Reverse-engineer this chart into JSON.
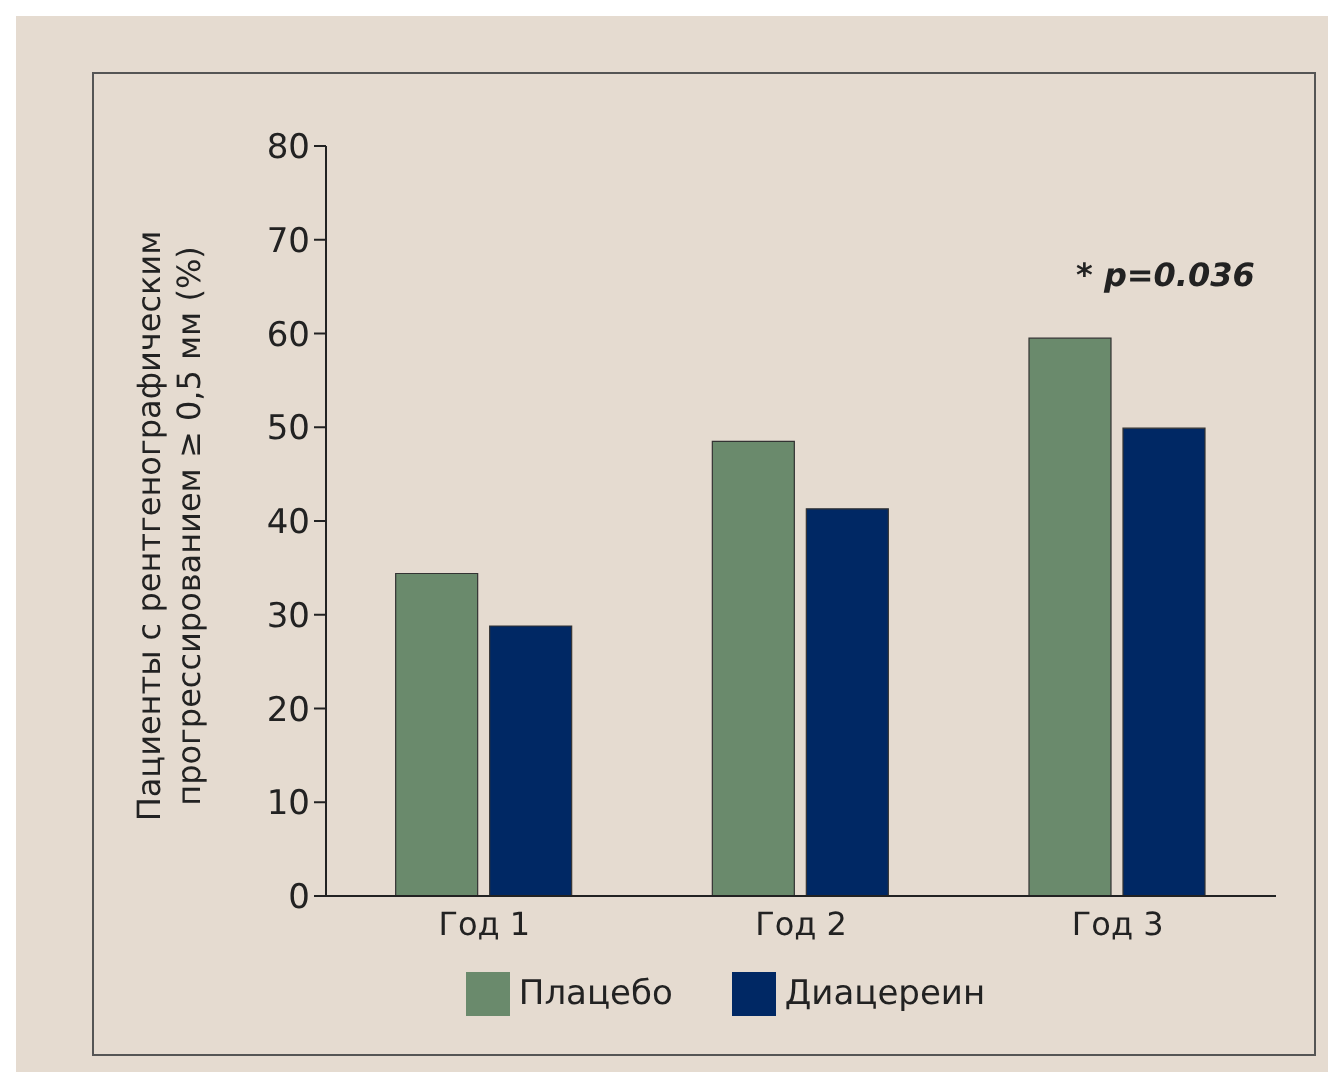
{
  "chart_data": {
    "type": "bar",
    "ylabel": "Пациенты с рентгенографическим прогрессированием ≥ 0,5 мм (%)",
    "categories": [
      "Год 1",
      "Год 2",
      "Год 3"
    ],
    "series": [
      {
        "name": "Плацебо",
        "color": "#6a8a6c",
        "values": [
          34.4,
          48.5,
          59.5
        ]
      },
      {
        "name": "Диацереин",
        "color": "#002864",
        "values": [
          28.8,
          41.3,
          49.9
        ]
      }
    ],
    "ylim": [
      0,
      80
    ],
    "yticks": [
      0,
      10,
      20,
      30,
      40,
      50,
      60,
      70,
      80
    ],
    "grid": false,
    "legend": "bottom",
    "annotations": [
      "* p=0.036"
    ]
  }
}
